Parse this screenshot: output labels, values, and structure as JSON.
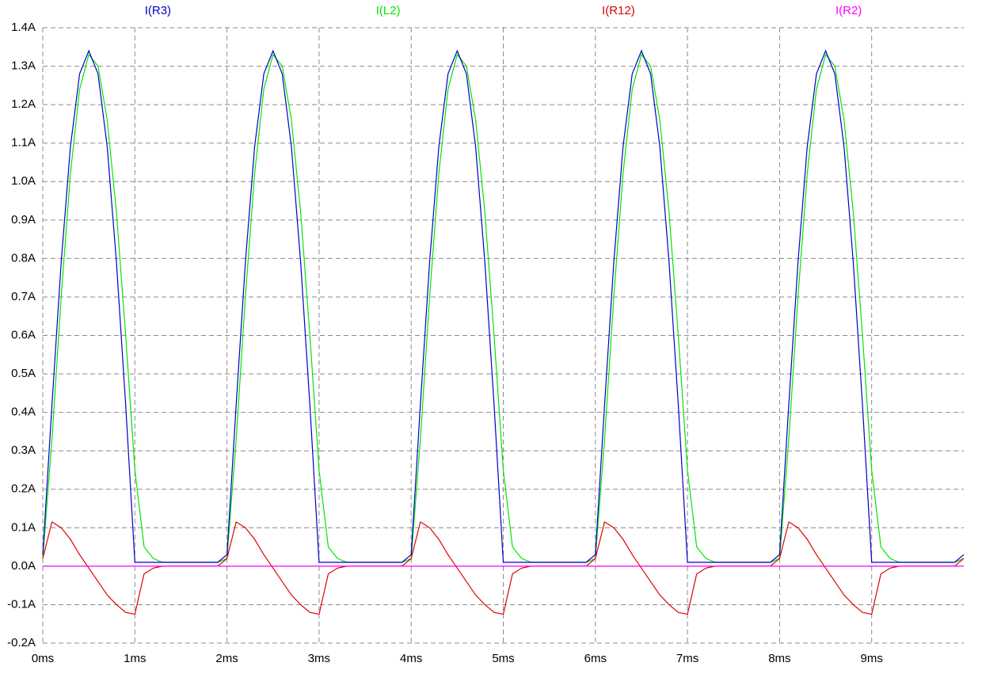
{
  "chart_data": {
    "type": "line",
    "x": [
      0,
      0.1,
      0.2,
      0.3,
      0.4,
      0.5,
      0.6,
      0.7,
      0.8,
      0.9,
      1,
      1.1,
      1.2,
      1.3,
      1.4,
      1.5,
      1.6,
      1.7,
      1.8,
      1.9,
      2,
      2.1,
      2.2,
      2.3,
      2.4,
      2.5,
      2.6,
      2.7,
      2.8,
      2.9,
      3,
      3.1,
      3.2,
      3.3,
      3.4,
      3.5,
      3.6,
      3.7,
      3.8,
      3.9,
      4,
      4.1,
      4.2,
      4.3,
      4.4,
      4.5,
      4.6,
      4.7,
      4.8,
      4.9,
      5,
      5.1,
      5.2,
      5.3,
      5.4,
      5.5,
      5.6,
      5.7,
      5.8,
      5.9,
      6,
      6.1,
      6.2,
      6.3,
      6.4,
      6.5,
      6.6,
      6.7,
      6.8,
      6.9,
      7,
      7.1,
      7.2,
      7.3,
      7.4,
      7.5,
      7.6,
      7.7,
      7.8,
      7.9,
      8,
      8.1,
      8.2,
      8.3,
      8.4,
      8.5,
      8.6,
      8.7,
      8.8,
      8.9,
      9,
      9.1,
      9.2,
      9.3,
      9.4,
      9.5,
      9.6,
      9.7,
      9.8,
      9.9,
      10
    ],
    "series": [
      {
        "name": "I(R3)",
        "color": "#0000c8",
        "values": [
          0.03,
          0.42,
          0.79,
          1.09,
          1.28,
          1.34,
          1.28,
          1.09,
          0.79,
          0.42,
          0.01,
          0.01,
          0.01,
          0.01,
          0.01,
          0.01,
          0.01,
          0.01,
          0.01,
          0.01,
          0.03,
          0.42,
          0.79,
          1.09,
          1.28,
          1.34,
          1.28,
          1.09,
          0.79,
          0.42,
          0.01,
          0.01,
          0.01,
          0.01,
          0.01,
          0.01,
          0.01,
          0.01,
          0.01,
          0.01,
          0.03,
          0.42,
          0.79,
          1.09,
          1.28,
          1.34,
          1.28,
          1.09,
          0.79,
          0.42,
          0.01,
          0.01,
          0.01,
          0.01,
          0.01,
          0.01,
          0.01,
          0.01,
          0.01,
          0.01,
          0.03,
          0.42,
          0.79,
          1.09,
          1.28,
          1.34,
          1.28,
          1.09,
          0.79,
          0.42,
          0.01,
          0.01,
          0.01,
          0.01,
          0.01,
          0.01,
          0.01,
          0.01,
          0.01,
          0.01,
          0.03,
          0.42,
          0.79,
          1.09,
          1.28,
          1.34,
          1.28,
          1.09,
          0.79,
          0.42,
          0.01,
          0.01,
          0.01,
          0.01,
          0.01,
          0.01,
          0.01,
          0.01,
          0.01,
          0.01,
          0.03
        ]
      },
      {
        "name": "I(L2)",
        "color": "#00e600",
        "values": [
          0.02,
          0.33,
          0.7,
          1.02,
          1.24,
          1.33,
          1.3,
          1.16,
          0.92,
          0.6,
          0.25,
          0.05,
          0.02,
          0.01,
          0.01,
          0.01,
          0.01,
          0.01,
          0.01,
          0.01,
          0.02,
          0.33,
          0.7,
          1.02,
          1.24,
          1.33,
          1.3,
          1.16,
          0.92,
          0.6,
          0.25,
          0.05,
          0.02,
          0.01,
          0.01,
          0.01,
          0.01,
          0.01,
          0.01,
          0.01,
          0.02,
          0.33,
          0.7,
          1.02,
          1.24,
          1.33,
          1.3,
          1.16,
          0.92,
          0.6,
          0.25,
          0.05,
          0.02,
          0.01,
          0.01,
          0.01,
          0.01,
          0.01,
          0.01,
          0.01,
          0.02,
          0.33,
          0.7,
          1.02,
          1.24,
          1.33,
          1.3,
          1.16,
          0.92,
          0.6,
          0.25,
          0.05,
          0.02,
          0.01,
          0.01,
          0.01,
          0.01,
          0.01,
          0.01,
          0.01,
          0.02,
          0.33,
          0.7,
          1.02,
          1.24,
          1.33,
          1.3,
          1.16,
          0.92,
          0.6,
          0.25,
          0.05,
          0.02,
          0.01,
          0.01,
          0.01,
          0.01,
          0.01,
          0.01,
          0.01,
          0.02
        ]
      },
      {
        "name": "I(R12)",
        "color": "#e00000",
        "values": [
          0.02,
          0.115,
          0.1,
          0.07,
          0.03,
          -0.005,
          -0.04,
          -0.075,
          -0.1,
          -0.12,
          -0.125,
          -0.02,
          -0.005,
          0,
          0,
          0,
          0,
          0,
          0,
          0,
          0.02,
          0.115,
          0.1,
          0.07,
          0.03,
          -0.005,
          -0.04,
          -0.075,
          -0.1,
          -0.12,
          -0.125,
          -0.02,
          -0.005,
          0,
          0,
          0,
          0,
          0,
          0,
          0,
          0.02,
          0.115,
          0.1,
          0.07,
          0.03,
          -0.005,
          -0.04,
          -0.075,
          -0.1,
          -0.12,
          -0.125,
          -0.02,
          -0.005,
          0,
          0,
          0,
          0,
          0,
          0,
          0,
          0.02,
          0.115,
          0.1,
          0.07,
          0.03,
          -0.005,
          -0.04,
          -0.075,
          -0.1,
          -0.12,
          -0.125,
          -0.02,
          -0.005,
          0,
          0,
          0,
          0,
          0,
          0,
          0,
          0.02,
          0.115,
          0.1,
          0.07,
          0.03,
          -0.005,
          -0.04,
          -0.075,
          -0.1,
          -0.12,
          -0.125,
          -0.02,
          -0.005,
          0,
          0,
          0,
          0,
          0,
          0,
          0,
          0.02
        ]
      },
      {
        "name": "I(R2)",
        "color": "#ff00ff",
        "values": [
          0,
          0,
          0,
          0,
          0,
          0,
          0,
          0,
          0,
          0,
          0,
          0,
          0,
          0,
          0,
          0,
          0,
          0,
          0,
          0,
          0,
          0,
          0,
          0,
          0,
          0,
          0,
          0,
          0,
          0,
          0,
          0,
          0,
          0,
          0,
          0,
          0,
          0,
          0,
          0,
          0,
          0,
          0,
          0,
          0,
          0,
          0,
          0,
          0,
          0,
          0,
          0,
          0,
          0,
          0,
          0,
          0,
          0,
          0,
          0,
          0,
          0,
          0,
          0,
          0,
          0,
          0,
          0,
          0,
          0,
          0,
          0,
          0,
          0,
          0,
          0,
          0,
          0,
          0,
          0,
          0,
          0,
          0,
          0,
          0,
          0,
          0,
          0,
          0,
          0,
          0,
          0,
          0,
          0,
          0,
          0,
          0,
          0,
          0,
          0,
          0
        ]
      }
    ],
    "xlim": [
      0,
      10
    ],
    "xticks": [
      {
        "value": 0,
        "label": "0ms"
      },
      {
        "value": 1,
        "label": "1ms"
      },
      {
        "value": 2,
        "label": "2ms"
      },
      {
        "value": 3,
        "label": "3ms"
      },
      {
        "value": 4,
        "label": "4ms"
      },
      {
        "value": 5,
        "label": "5ms"
      },
      {
        "value": 6,
        "label": "6ms"
      },
      {
        "value": 7,
        "label": "7ms"
      },
      {
        "value": 8,
        "label": "8ms"
      },
      {
        "value": 9,
        "label": "9ms"
      }
    ],
    "ylim": [
      -0.2,
      1.4
    ],
    "yticks": [
      {
        "value": -0.2,
        "label": "-0.2A"
      },
      {
        "value": -0.1,
        "label": "-0.1A"
      },
      {
        "value": 0,
        "label": "0.0A"
      },
      {
        "value": 0.1,
        "label": "0.1A"
      },
      {
        "value": 0.2,
        "label": "0.2A"
      },
      {
        "value": 0.3,
        "label": "0.3A"
      },
      {
        "value": 0.4,
        "label": "0.4A"
      },
      {
        "value": 0.5,
        "label": "0.5A"
      },
      {
        "value": 0.6,
        "label": "0.6A"
      },
      {
        "value": 0.7,
        "label": "0.7A"
      },
      {
        "value": 0.8,
        "label": "0.8A"
      },
      {
        "value": 0.9,
        "label": "0.9A"
      },
      {
        "value": 1.0,
        "label": "1.0A"
      },
      {
        "value": 1.1,
        "label": "1.1A"
      },
      {
        "value": 1.2,
        "label": "1.2A"
      },
      {
        "value": 1.3,
        "label": "1.3A"
      },
      {
        "value": 1.4,
        "label": "1.4A"
      }
    ],
    "grid": true
  }
}
